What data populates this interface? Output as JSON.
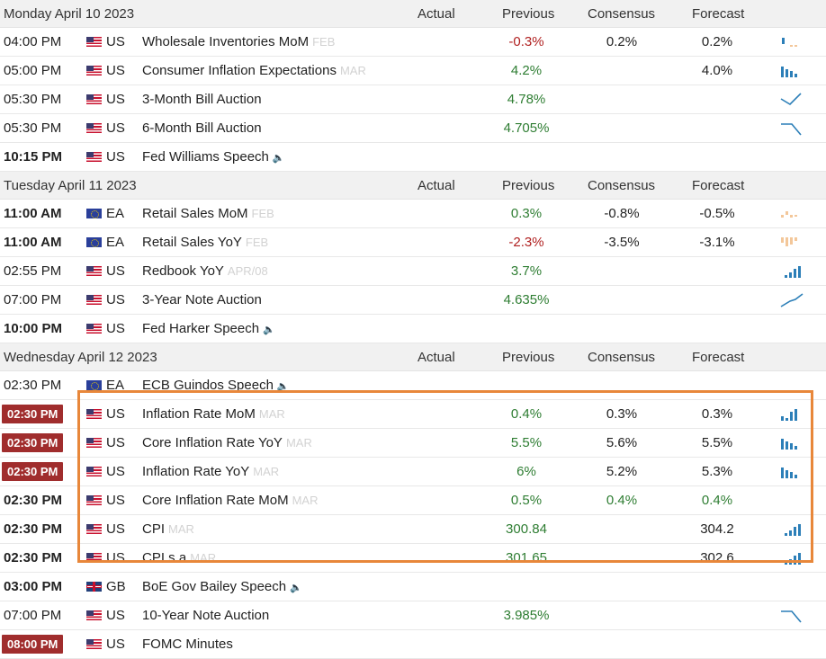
{
  "days": [
    {
      "title": "Monday April 10 2023",
      "columns": {
        "actual": "Actual",
        "previous": "Previous",
        "consensus": "Consensus",
        "forecast": "Forecast"
      },
      "rows": [
        {
          "time": "04:00 PM",
          "time_style": "normal",
          "flag": "us",
          "country": "US",
          "event": "Wholesale Inventories MoM",
          "period": "FEB",
          "speaker": false,
          "actual": "",
          "previous": "-0.3%",
          "previous_color": "red",
          "consensus": "0.2%",
          "consensus_color": "dark",
          "forecast": "0.2%",
          "forecast_color": "dark",
          "spark": "bars-neg"
        },
        {
          "time": "05:00 PM",
          "time_style": "normal",
          "flag": "us",
          "country": "US",
          "event": "Consumer Inflation Expectations",
          "period": "MAR",
          "speaker": false,
          "actual": "",
          "previous": "4.2%",
          "previous_color": "green",
          "consensus": "",
          "consensus_color": "dark",
          "forecast": "4.0%",
          "forecast_color": "dark",
          "spark": "bars-down"
        },
        {
          "time": "05:30 PM",
          "time_style": "normal",
          "flag": "us",
          "country": "US",
          "event": "3-Month Bill Auction",
          "period": "",
          "speaker": false,
          "actual": "",
          "previous": "4.78%",
          "previous_color": "green",
          "consensus": "",
          "consensus_color": "dark",
          "forecast": "",
          "forecast_color": "dark",
          "spark": "line-v"
        },
        {
          "time": "05:30 PM",
          "time_style": "normal",
          "flag": "us",
          "country": "US",
          "event": "6-Month Bill Auction",
          "period": "",
          "speaker": false,
          "actual": "",
          "previous": "4.705%",
          "previous_color": "green",
          "consensus": "",
          "consensus_color": "dark",
          "forecast": "",
          "forecast_color": "dark",
          "spark": "line-drop"
        },
        {
          "time": "10:15 PM",
          "time_style": "bold",
          "flag": "us",
          "country": "US",
          "event": "Fed Williams Speech",
          "period": "",
          "speaker": true,
          "actual": "",
          "previous": "",
          "previous_color": "dark",
          "consensus": "",
          "consensus_color": "dark",
          "forecast": "",
          "forecast_color": "dark",
          "spark": ""
        }
      ]
    },
    {
      "title": "Tuesday April 11 2023",
      "columns": {
        "actual": "Actual",
        "previous": "Previous",
        "consensus": "Consensus",
        "forecast": "Forecast"
      },
      "rows": [
        {
          "time": "11:00 AM",
          "time_style": "bold",
          "flag": "ea",
          "country": "EA",
          "event": "Retail Sales MoM",
          "period": "FEB",
          "speaker": false,
          "actual": "",
          "previous": "0.3%",
          "previous_color": "green",
          "consensus": "-0.8%",
          "consensus_color": "dark",
          "forecast": "-0.5%",
          "forecast_color": "dark",
          "spark": "bars-pale-mixed"
        },
        {
          "time": "11:00 AM",
          "time_style": "bold",
          "flag": "ea",
          "country": "EA",
          "event": "Retail Sales YoY",
          "period": "FEB",
          "speaker": false,
          "actual": "",
          "previous": "-2.3%",
          "previous_color": "red",
          "consensus": "-3.5%",
          "consensus_color": "dark",
          "forecast": "-3.1%",
          "forecast_color": "dark",
          "spark": "bars-pale-neg"
        },
        {
          "time": "02:55 PM",
          "time_style": "normal",
          "flag": "us",
          "country": "US",
          "event": "Redbook YoY",
          "period": "APR/08",
          "speaker": false,
          "actual": "",
          "previous": "3.7%",
          "previous_color": "green",
          "consensus": "",
          "consensus_color": "dark",
          "forecast": "",
          "forecast_color": "dark",
          "spark": "bars-up"
        },
        {
          "time": "07:00 PM",
          "time_style": "normal",
          "flag": "us",
          "country": "US",
          "event": "3-Year Note Auction",
          "period": "",
          "speaker": false,
          "actual": "",
          "previous": "4.635%",
          "previous_color": "green",
          "consensus": "",
          "consensus_color": "dark",
          "forecast": "",
          "forecast_color": "dark",
          "spark": "line-up"
        },
        {
          "time": "10:00 PM",
          "time_style": "bold",
          "flag": "us",
          "country": "US",
          "event": "Fed Harker Speech",
          "period": "",
          "speaker": true,
          "actual": "",
          "previous": "",
          "previous_color": "dark",
          "consensus": "",
          "consensus_color": "dark",
          "forecast": "",
          "forecast_color": "dark",
          "spark": ""
        }
      ]
    },
    {
      "title": "Wednesday April 12 2023",
      "columns": {
        "actual": "Actual",
        "previous": "Previous",
        "consensus": "Consensus",
        "forecast": "Forecast"
      },
      "rows": [
        {
          "time": "02:30 PM",
          "time_style": "normal",
          "flag": "ea",
          "country": "EA",
          "event": "ECB Guindos Speech",
          "period": "",
          "speaker": true,
          "actual": "",
          "previous": "",
          "previous_color": "dark",
          "consensus": "",
          "consensus_color": "dark",
          "forecast": "",
          "forecast_color": "dark",
          "spark": ""
        },
        {
          "time": "02:30 PM",
          "time_style": "badge",
          "flag": "us",
          "country": "US",
          "event": "Inflation Rate MoM",
          "period": "MAR",
          "speaker": false,
          "actual": "",
          "previous": "0.4%",
          "previous_color": "green",
          "consensus": "0.3%",
          "consensus_color": "dark",
          "forecast": "0.3%",
          "forecast_color": "dark",
          "spark": "bars-mixed"
        },
        {
          "time": "02:30 PM",
          "time_style": "badge",
          "flag": "us",
          "country": "US",
          "event": "Core Inflation Rate YoY",
          "period": "MAR",
          "speaker": false,
          "actual": "",
          "previous": "5.5%",
          "previous_color": "green",
          "consensus": "5.6%",
          "consensus_color": "dark",
          "forecast": "5.5%",
          "forecast_color": "dark",
          "spark": "bars-down"
        },
        {
          "time": "02:30 PM",
          "time_style": "badge",
          "flag": "us",
          "country": "US",
          "event": "Inflation Rate YoY",
          "period": "MAR",
          "speaker": false,
          "actual": "",
          "previous": "6%",
          "previous_color": "green",
          "consensus": "5.2%",
          "consensus_color": "dark",
          "forecast": "5.3%",
          "forecast_color": "dark",
          "spark": "bars-down"
        },
        {
          "time": "02:30 PM",
          "time_style": "bold",
          "flag": "us",
          "country": "US",
          "event": "Core Inflation Rate MoM",
          "period": "MAR",
          "speaker": false,
          "actual": "",
          "previous": "0.5%",
          "previous_color": "green",
          "consensus": "0.4%",
          "consensus_color": "green",
          "forecast": "0.4%",
          "forecast_color": "green",
          "spark": ""
        },
        {
          "time": "02:30 PM",
          "time_style": "bold",
          "flag": "us",
          "country": "US",
          "event": "CPI",
          "period": "MAR",
          "speaker": false,
          "actual": "",
          "previous": "300.84",
          "previous_color": "green",
          "consensus": "",
          "consensus_color": "dark",
          "forecast": "304.2",
          "forecast_color": "dark",
          "spark": "bars-up"
        },
        {
          "time": "02:30 PM",
          "time_style": "bold",
          "flag": "us",
          "country": "US",
          "event": "CPI s.a",
          "period": "MAR",
          "speaker": false,
          "actual": "",
          "previous": "301.65",
          "previous_color": "green",
          "consensus": "",
          "consensus_color": "dark",
          "forecast": "302.6",
          "forecast_color": "dark",
          "spark": "bars-up"
        },
        {
          "time": "03:00 PM",
          "time_style": "bold",
          "flag": "gb",
          "country": "GB",
          "event": "BoE Gov Bailey Speech",
          "period": "",
          "speaker": true,
          "actual": "",
          "previous": "",
          "previous_color": "dark",
          "consensus": "",
          "consensus_color": "dark",
          "forecast": "",
          "forecast_color": "dark",
          "spark": ""
        },
        {
          "time": "07:00 PM",
          "time_style": "normal",
          "flag": "us",
          "country": "US",
          "event": "10-Year Note Auction",
          "period": "",
          "speaker": false,
          "actual": "",
          "previous": "3.985%",
          "previous_color": "green",
          "consensus": "",
          "consensus_color": "dark",
          "forecast": "",
          "forecast_color": "dark",
          "spark": "line-drop"
        },
        {
          "time": "08:00 PM",
          "time_style": "badge",
          "flag": "us",
          "country": "US",
          "event": "FOMC Minutes",
          "period": "",
          "speaker": false,
          "actual": "",
          "previous": "",
          "previous_color": "dark",
          "consensus": "",
          "consensus_color": "dark",
          "forecast": "",
          "forecast_color": "dark",
          "spark": ""
        }
      ]
    }
  ],
  "colors": {
    "badge": "#a02d2d",
    "green": "#2e7d32",
    "red": "#b02020",
    "highlight": "#e8873a",
    "spark": "#2c7fb8"
  },
  "icons": {
    "speaker": "speaker-icon",
    "flag_us": "us-flag-icon",
    "flag_ea": "ea-flag-icon",
    "flag_gb": "gb-flag-icon"
  }
}
